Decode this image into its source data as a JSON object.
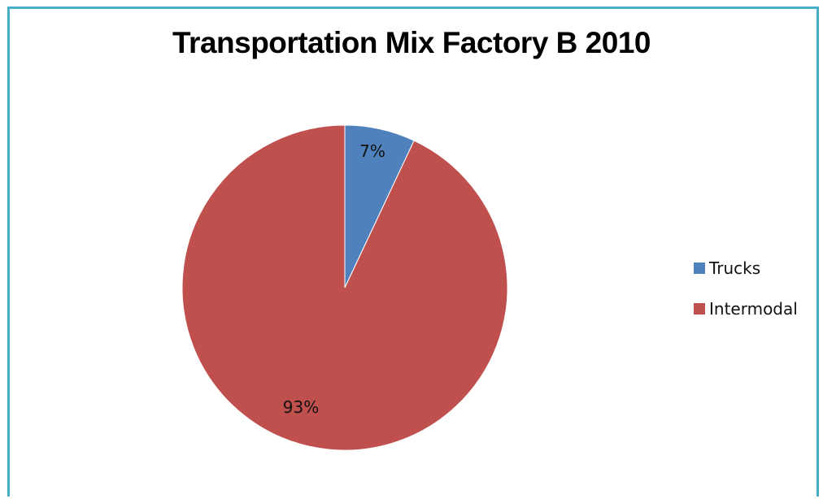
{
  "chart_data": {
    "type": "pie",
    "title": "Transportation Mix Factory B 2010",
    "categories": [
      "Trucks",
      "Intermodal"
    ],
    "values": [
      7,
      93
    ],
    "labels": [
      "7%",
      "93%"
    ],
    "colors": [
      "#4f81bd",
      "#c0504d"
    ],
    "legend_position": "right",
    "start_angle_deg": 0,
    "direction": "clockwise"
  }
}
